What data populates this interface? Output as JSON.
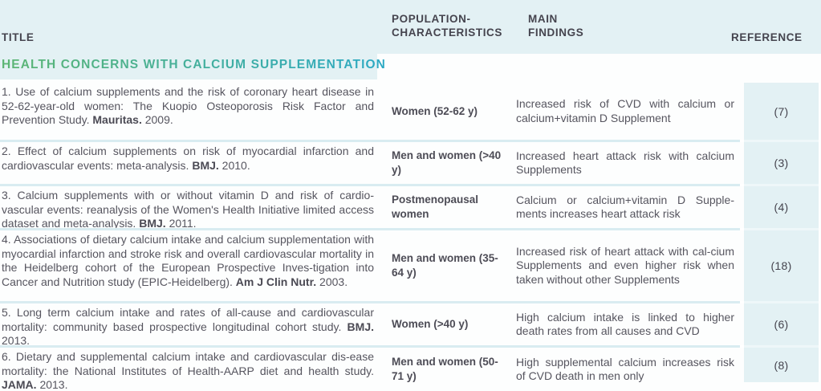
{
  "colors": {
    "band_background": "#e3f1f4",
    "separator": "#d9ecf1",
    "body_text": "#56555f",
    "heading_text": "#45444e",
    "section_gradient_start": "#5cb573",
    "section_gradient_end": "#2ba9c4"
  },
  "table": {
    "headers": {
      "title": "TITLE",
      "population": "POPULATION-\nCHARACTERISTICS",
      "findings": "MAIN\nFINDINGS",
      "reference": "REFERENCE"
    },
    "section": "HEALTH CONCERNS WITH CALCIUM SUPPLEMENTATION",
    "rows": [
      {
        "title": "1. Use of calcium supplements and the risk of coronary heart disease in 52-62-year-old women: The Kuopio Osteoporosis Risk Factor and Prevention Study.",
        "source": "Mauritas.",
        "year": "2009.",
        "population": "Women (52-62 y)",
        "findings": "Increased risk of CVD with calcium or calcium+vitamin D Supplement",
        "reference": "(7)"
      },
      {
        "title": "2. Effect of calcium supplements on risk of myocardial infarction and cardiovascular events: meta-analysis.",
        "source": "BMJ.",
        "year": "2010.",
        "population": "Men and women (>40 y)",
        "findings": "Increased heart attack risk with calcium Supplements",
        "reference": "(3)"
      },
      {
        "title": "3. Calcium supplements with or without vitamin D and risk of cardio-vascular events: reanalysis of the Women's Health Initiative limited access dataset and meta-analysis.",
        "source": "BMJ.",
        "year": "2011.",
        "population": "Postmenopausal women",
        "findings": "Calcium or calcium+vitamin D Supple-ments increases heart attack risk",
        "reference": "(4)"
      },
      {
        "title": "4. Associations of dietary calcium intake and calcium supplementation with myocardial infarction and stroke risk and overall cardiovascular mortality in the Heidelberg cohort of the European Prospective Inves-tigation into Cancer and Nutrition study (EPIC-Heidelberg).",
        "source": "Am J Clin Nutr.",
        "year": "2003.",
        "population": "Men and women (35-64 y)",
        "findings": "Increased risk of heart attack with cal-cium Supplements and even higher risk when taken without other Supplements",
        "reference": "(18)"
      },
      {
        "title": "5. Long term calcium intake and rates of all-cause and cardiovascular mortality: community based prospective longitudinal cohort study.",
        "source": "BMJ.",
        "year": "2013.",
        "population": "Women (>40 y)",
        "findings": "High calcium intake is linked to higher death rates from all causes and CVD",
        "reference": "(6)"
      },
      {
        "title": "6. Dietary and supplemental calcium intake and cardiovascular dis-ease mortality: the National Institutes of Health-AARP diet and health study.",
        "source": "JAMA.",
        "year": "2013.",
        "population": "Men and women (50-71 y)",
        "findings": "High supplemental calcium increases risk of CVD death in men only",
        "reference": "(8)"
      }
    ]
  }
}
